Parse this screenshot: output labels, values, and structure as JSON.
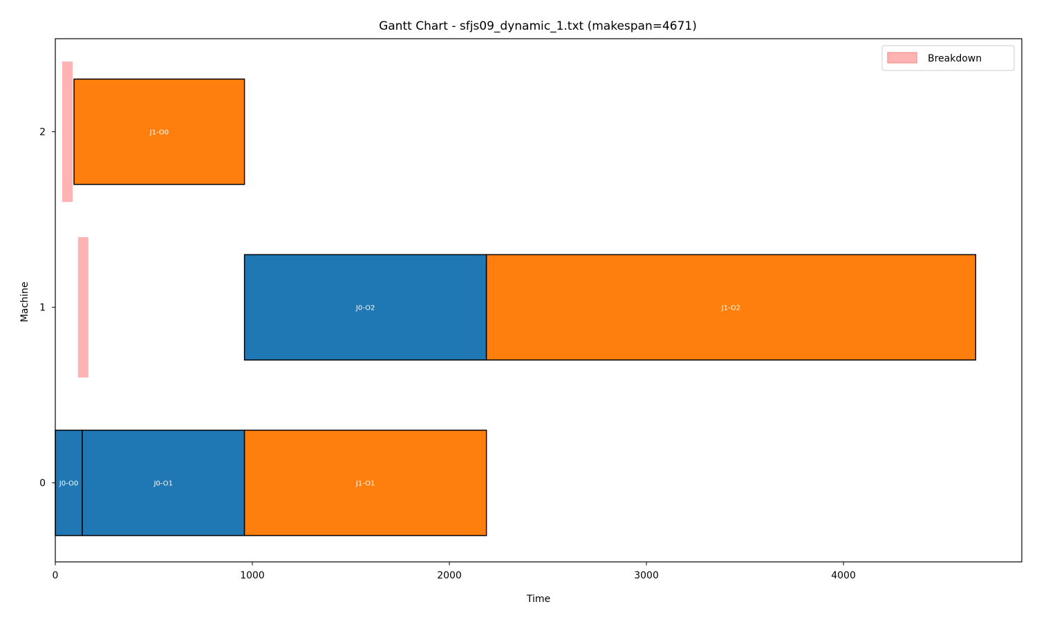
{
  "chart_data": {
    "type": "gantt",
    "title": "Gantt Chart - sfjs09_dynamic_1.txt (makespan=4671)",
    "xlabel": "Time",
    "ylabel": "Machine",
    "xlim": [
      0,
      4905
    ],
    "ylim": [
      -0.45,
      2.53
    ],
    "x_ticks": [
      0,
      1000,
      2000,
      3000,
      4000
    ],
    "y_ticks": [
      0,
      1,
      2
    ],
    "legend": {
      "position": "top-right",
      "entries": [
        "Breakdown"
      ]
    },
    "colors": {
      "J0": "#1f77b4",
      "J1": "#ff7f0e",
      "breakdown": "#ffb3b3",
      "breakdown_edge": "#f08080",
      "edge": "#000000"
    },
    "operations": [
      {
        "label": "J0-O0",
        "job": "J0",
        "machine": 0,
        "start": 0,
        "end": 137
      },
      {
        "label": "J0-O1",
        "job": "J0",
        "machine": 0,
        "start": 137,
        "end": 960
      },
      {
        "label": "J1-O1",
        "job": "J1",
        "machine": 0,
        "start": 960,
        "end": 2188
      },
      {
        "label": "J0-O2",
        "job": "J0",
        "machine": 1,
        "start": 960,
        "end": 2188
      },
      {
        "label": "J1-O2",
        "job": "J1",
        "machine": 1,
        "start": 2188,
        "end": 4671
      },
      {
        "label": "J1-O0",
        "job": "J1",
        "machine": 2,
        "start": 95,
        "end": 960
      }
    ],
    "breakdowns": [
      {
        "machine": 1,
        "start": 115,
        "end": 168
      },
      {
        "machine": 2,
        "start": 35,
        "end": 88
      }
    ]
  }
}
